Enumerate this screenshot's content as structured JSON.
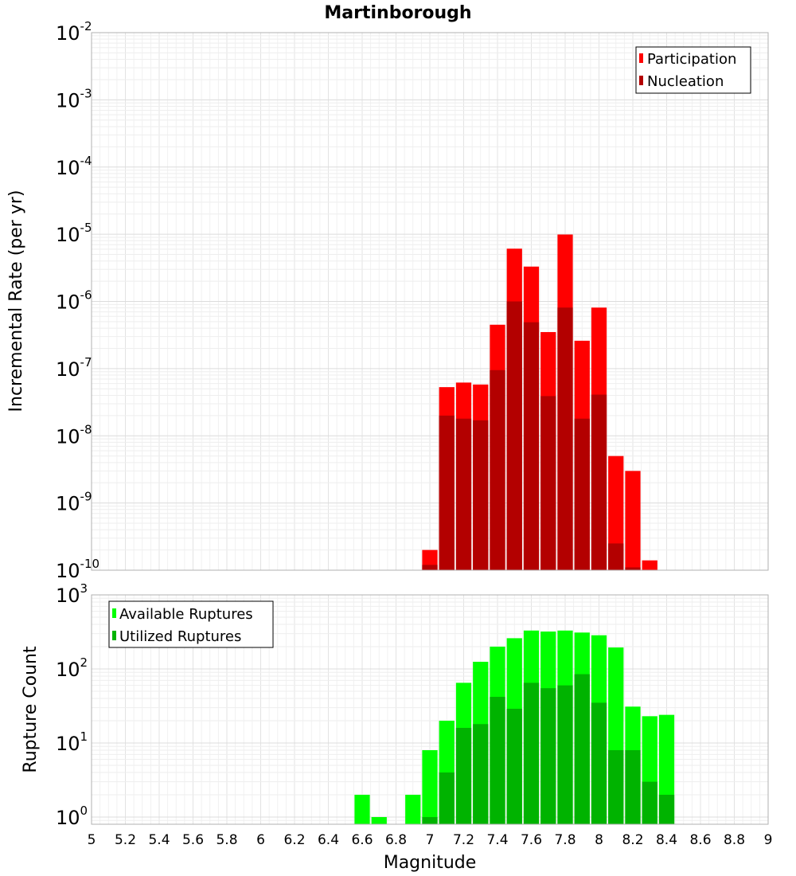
{
  "chart_data": [
    {
      "type": "bar",
      "title": "Martinborough",
      "xlabel": "",
      "ylabel": "Incremental Rate (per yr)",
      "yscale": "log",
      "ylim": [
        1e-10,
        0.01
      ],
      "xlim": [
        5,
        9
      ],
      "y_tick_exponents": [
        "-10",
        "-9",
        "-8",
        "-7",
        "-6",
        "-5",
        "-4",
        "-3",
        "-2"
      ],
      "legend_position": "top-right",
      "grid": true,
      "x": [
        7.0,
        7.1,
        7.2,
        7.3,
        7.4,
        7.5,
        7.6,
        7.7,
        7.8,
        7.9,
        8.0,
        8.1,
        8.2,
        8.3
      ],
      "series": [
        {
          "name": "Participation",
          "color": "#ff0000",
          "values": [
            2e-10,
            5.3e-08,
            6.2e-08,
            5.8e-08,
            4.5e-07,
            6.1e-06,
            3.3e-06,
            3.5e-07,
            9.9e-06,
            2.6e-07,
            8.1e-07,
            5e-09,
            3e-09,
            1.4e-10
          ]
        },
        {
          "name": "Nucleation",
          "color": "#b30000",
          "values": [
            1.2e-10,
            2e-08,
            1.8e-08,
            1.7e-08,
            9.5e-08,
            1e-06,
            4.9e-07,
            3.9e-08,
            8.1e-07,
            1.8e-08,
            4.1e-08,
            2.5e-10,
            1.1e-10,
            null
          ]
        }
      ]
    },
    {
      "type": "bar",
      "title": "",
      "xlabel": "Magnitude",
      "ylabel": "Rupture Count",
      "yscale": "log",
      "ylim": [
        0.8,
        1000
      ],
      "xlim": [
        5,
        9
      ],
      "x_ticks": [
        "5",
        "5.2",
        "5.4",
        "5.6",
        "5.8",
        "6",
        "6.2",
        "6.4",
        "6.6",
        "6.8",
        "7",
        "7.2",
        "7.4",
        "7.6",
        "7.8",
        "8",
        "8.2",
        "8.4",
        "8.6",
        "8.8",
        "9"
      ],
      "y_tick_exponents": [
        "0",
        "1",
        "2",
        "3"
      ],
      "legend_position": "top-left",
      "grid": true,
      "x": [
        6.6,
        6.7,
        6.9,
        7.0,
        7.1,
        7.2,
        7.3,
        7.4,
        7.5,
        7.6,
        7.7,
        7.8,
        7.9,
        8.0,
        8.1,
        8.2,
        8.3,
        8.4
      ],
      "series": [
        {
          "name": "Available Ruptures",
          "color": "#00ff00",
          "values": [
            2,
            1,
            2,
            8,
            20,
            65,
            125,
            200,
            260,
            330,
            320,
            330,
            310,
            285,
            195,
            31,
            23,
            24
          ]
        },
        {
          "name": "Utilized Ruptures",
          "color": "#00b300",
          "values": [
            null,
            null,
            null,
            1,
            4,
            16,
            18,
            42,
            29,
            65,
            55,
            60,
            85,
            35,
            8,
            8,
            3,
            2
          ]
        }
      ]
    }
  ]
}
